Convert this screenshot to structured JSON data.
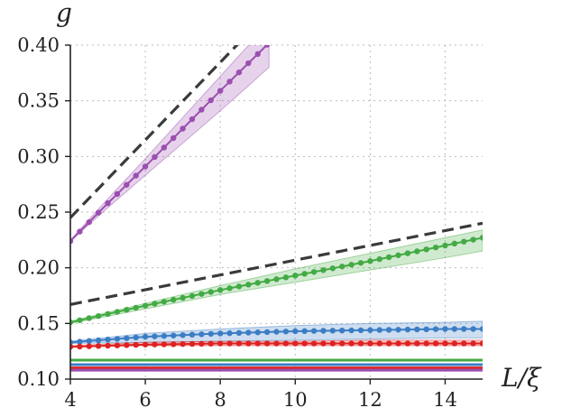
{
  "chart_data": {
    "type": "line",
    "xlabel": "L/ξ",
    "ylabel": "g",
    "xlim": [
      4,
      15
    ],
    "ylim": [
      0.1,
      0.4
    ],
    "xticks": [
      4,
      6,
      8,
      10,
      12,
      14
    ],
    "xtick_labels": [
      "4",
      "6",
      "8",
      "10",
      "12",
      "14"
    ],
    "yticks": [
      0.1,
      0.15,
      0.2,
      0.25,
      0.3,
      0.35,
      0.4
    ],
    "ytick_labels": [
      "0.10",
      "0.15",
      "0.20",
      "0.25",
      "0.30",
      "0.35",
      "0.40"
    ],
    "grid": true,
    "series": [
      {
        "color": "#9b4fb0",
        "style": "line-with-markers",
        "x": [
          4,
          5,
          6,
          7,
          8,
          9,
          9.3
        ],
        "y": [
          0.224,
          0.258,
          0.291,
          0.325,
          0.359,
          0.392,
          0.402
        ],
        "band_lower": [
          0.224,
          0.254,
          0.283,
          0.312,
          0.341,
          0.371,
          0.38
        ],
        "band_upper": [
          0.225,
          0.262,
          0.298,
          0.335,
          0.372,
          0.409,
          0.42
        ]
      },
      {
        "color": "#3a3a3a",
        "style": "dashed",
        "x": [
          4,
          8.5
        ],
        "y": [
          0.245,
          0.402
        ]
      },
      {
        "color": "#44aa44",
        "style": "line-with-markers",
        "x": [
          4,
          6,
          8,
          10,
          12,
          14,
          15
        ],
        "y": [
          0.151,
          0.166,
          0.18,
          0.193,
          0.206,
          0.22,
          0.227
        ],
        "band_lower": [
          0.15,
          0.163,
          0.176,
          0.187,
          0.198,
          0.209,
          0.215
        ],
        "band_upper": [
          0.152,
          0.168,
          0.184,
          0.199,
          0.213,
          0.227,
          0.234
        ]
      },
      {
        "color": "#3a3a3a",
        "style": "dashed",
        "x": [
          4,
          15
        ],
        "y": [
          0.167,
          0.24
        ]
      },
      {
        "color": "#3b7dc4",
        "style": "line-with-markers",
        "x": [
          4,
          6,
          8,
          10,
          12,
          14,
          15
        ],
        "y": [
          0.133,
          0.138,
          0.141,
          0.143,
          0.144,
          0.145,
          0.145
        ],
        "band_lower": [
          0.132,
          0.133,
          0.134,
          0.135,
          0.136,
          0.137,
          0.137
        ],
        "band_upper": [
          0.134,
          0.141,
          0.145,
          0.148,
          0.15,
          0.151,
          0.152
        ]
      },
      {
        "color": "#dd2222",
        "style": "line-with-markers",
        "x": [
          4,
          6,
          8,
          10,
          12,
          14,
          15
        ],
        "y": [
          0.129,
          0.131,
          0.132,
          0.132,
          0.132,
          0.132,
          0.132
        ],
        "band_lower": [
          0.129,
          0.13,
          0.13,
          0.13,
          0.13,
          0.13,
          0.13
        ],
        "band_upper": [
          0.13,
          0.133,
          0.134,
          0.134,
          0.135,
          0.135,
          0.135
        ]
      },
      {
        "color": "#44aa44",
        "style": "solid",
        "x": [
          4,
          15
        ],
        "y": [
          0.117,
          0.117
        ]
      },
      {
        "color": "#3b7dc4",
        "style": "solid",
        "x": [
          4,
          15
        ],
        "y": [
          0.113,
          0.113
        ]
      },
      {
        "color": "#dd2222",
        "style": "solid",
        "x": [
          4,
          15
        ],
        "y": [
          0.11,
          0.11
        ]
      },
      {
        "color": "#9b4fb0",
        "style": "solid",
        "x": [
          4,
          15
        ],
        "y": [
          0.108,
          0.108
        ]
      }
    ]
  }
}
